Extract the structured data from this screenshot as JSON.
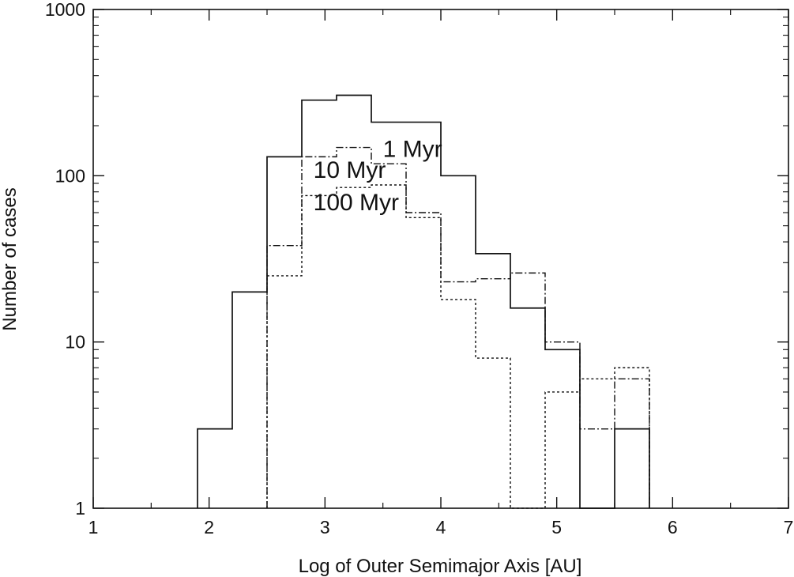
{
  "chart_data": {
    "type": "histogram-step",
    "title": "",
    "xlabel": "Log of Outer Semimajor Axis [AU]",
    "ylabel": "Number of cases",
    "xlim": [
      1,
      7
    ],
    "ylim": [
      1,
      1000
    ],
    "yscale": "log",
    "grid": false,
    "legend": "none",
    "x_ticks": [
      "1",
      "2",
      "3",
      "4",
      "5",
      "6",
      "7"
    ],
    "y_ticks": [
      "1",
      "10",
      "100",
      "1000"
    ],
    "bin_edges": [
      1.9,
      2.2,
      2.5,
      2.8,
      3.1,
      3.4,
      3.7,
      4.0,
      4.3,
      4.6,
      4.9,
      5.2,
      5.5,
      5.8
    ],
    "series": [
      {
        "label": "1 Myr",
        "style": "solid",
        "values": [
          3,
          20,
          130,
          285,
          305,
          210,
          210,
          100,
          34,
          16,
          9,
          0,
          3
        ]
      },
      {
        "label": "10 Myr",
        "style": "dashdot",
        "values": [
          0,
          0,
          38,
          130,
          148,
          118,
          60,
          23,
          24,
          26,
          10,
          3,
          6
        ]
      },
      {
        "label": "100 Myr",
        "style": "dotted",
        "values": [
          0,
          0,
          25,
          76,
          85,
          88,
          56,
          18,
          8,
          0,
          5,
          6,
          7
        ]
      }
    ],
    "annotations": [
      {
        "text": "1 Myr",
        "x": 3.5,
        "y": 130
      },
      {
        "text": "10 Myr",
        "x": 2.9,
        "y": 97
      },
      {
        "text": "100 Myr",
        "x": 2.9,
        "y": 62
      }
    ]
  }
}
